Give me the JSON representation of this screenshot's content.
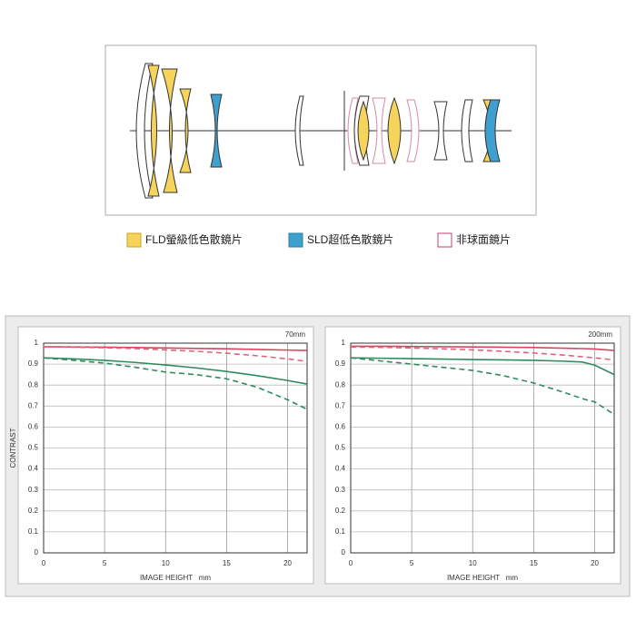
{
  "lens_legend": [
    "FLD螢級低色散鏡片",
    "SLD超低色散鏡片",
    "非球面鏡片"
  ],
  "chart_data": [
    {
      "type": "line",
      "title": "70mm",
      "xlabel": "IMAGE HEIGHT   mm",
      "ylabel": "CONTRAST",
      "x": [
        0,
        2.5,
        5,
        7.5,
        10,
        12.5,
        15,
        17.5,
        20,
        21.6
      ],
      "series": [
        {
          "color": "#d9455f",
          "dash": false,
          "values": [
            0.983,
            0.982,
            0.981,
            0.979,
            0.977,
            0.975,
            0.973,
            0.97,
            0.967,
            0.965
          ]
        },
        {
          "color": "#e0647a",
          "dash": true,
          "values": [
            0.983,
            0.981,
            0.978,
            0.974,
            0.968,
            0.961,
            0.952,
            0.94,
            0.925,
            0.913
          ]
        },
        {
          "color": "#2f8a5c",
          "dash": false,
          "values": [
            0.93,
            0.925,
            0.918,
            0.908,
            0.896,
            0.882,
            0.865,
            0.845,
            0.822,
            0.805
          ]
        },
        {
          "color": "#2f8a5c",
          "dash": true,
          "values": [
            0.93,
            0.918,
            0.905,
            0.885,
            0.862,
            0.85,
            0.83,
            0.79,
            0.73,
            0.685
          ]
        }
      ],
      "xlim": [
        0,
        21.6
      ],
      "ylim": [
        0,
        1
      ],
      "xticks": [
        0,
        5,
        10,
        15,
        20
      ],
      "yticks": [
        0,
        0.1,
        0.2,
        0.3,
        0.4,
        0.5,
        0.6,
        0.7,
        0.8,
        0.9,
        1
      ],
      "grid": true
    },
    {
      "type": "line",
      "title": "200mm",
      "xlabel": "IMAGE HEIGHT   mm",
      "x": [
        0,
        2.5,
        5,
        7.5,
        10,
        12.5,
        15,
        17.5,
        19,
        20,
        21.6
      ],
      "series": [
        {
          "color": "#d9455f",
          "dash": false,
          "values": [
            0.985,
            0.985,
            0.984,
            0.983,
            0.982,
            0.981,
            0.979,
            0.976,
            0.974,
            0.972,
            0.965
          ]
        },
        {
          "color": "#e0647a",
          "dash": true,
          "values": [
            0.982,
            0.98,
            0.977,
            0.973,
            0.968,
            0.961,
            0.953,
            0.943,
            0.935,
            0.93,
            0.92
          ]
        },
        {
          "color": "#2f8a5c",
          "dash": false,
          "values": [
            0.93,
            0.928,
            0.926,
            0.924,
            0.922,
            0.92,
            0.918,
            0.914,
            0.91,
            0.895,
            0.85
          ]
        },
        {
          "color": "#2f8a5c",
          "dash": true,
          "values": [
            0.93,
            0.915,
            0.9,
            0.885,
            0.87,
            0.845,
            0.81,
            0.765,
            0.735,
            0.72,
            0.66
          ]
        }
      ],
      "xlim": [
        0,
        21.6
      ],
      "ylim": [
        0,
        1
      ],
      "xticks": [
        0,
        5,
        10,
        15,
        20
      ],
      "yticks": [
        0,
        0.1,
        0.2,
        0.3,
        0.4,
        0.5,
        0.6,
        0.7,
        0.8,
        0.9,
        1
      ],
      "grid": true
    }
  ]
}
